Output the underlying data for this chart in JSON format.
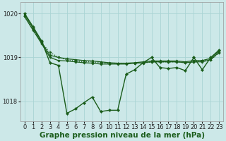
{
  "background_color": "#cce8e8",
  "plot_bg_color": "#cce8e8",
  "line_color": "#1a5c1a",
  "grid_color": "#aad4d4",
  "xlabel": "Graphe pression niveau de la mer (hPa)",
  "xlabel_fontsize": 7.5,
  "tick_fontsize": 6,
  "ylim": [
    1017.55,
    1020.25
  ],
  "xlim": [
    -0.5,
    23.5
  ],
  "yticks": [
    1018,
    1019,
    1020
  ],
  "xticks": [
    0,
    1,
    2,
    3,
    4,
    5,
    6,
    7,
    8,
    9,
    10,
    11,
    12,
    13,
    14,
    15,
    16,
    17,
    18,
    19,
    20,
    21,
    22,
    23
  ],
  "series": [
    {
      "y": [
        1019.93,
        1019.63,
        1019.33,
        1019.12,
        1019.0,
        1018.95,
        1018.92,
        1018.9,
        1018.9,
        1018.88,
        1018.87,
        1018.87,
        1018.87,
        1018.87,
        1018.87,
        1018.9,
        1018.9,
        1018.9,
        1018.9,
        1018.88,
        1018.9,
        1018.92,
        1018.95,
        1019.1
      ],
      "style": "dotted",
      "lw": 0.9,
      "marker": "D",
      "ms": 1.8
    },
    {
      "y": [
        1019.93,
        1019.62,
        1019.32,
        1019.0,
        1018.93,
        1018.92,
        1018.9,
        1018.88,
        1018.87,
        1018.85,
        1018.85,
        1018.85,
        1018.85,
        1018.87,
        1018.88,
        1018.9,
        1018.9,
        1018.9,
        1018.9,
        1018.88,
        1018.9,
        1018.9,
        1018.95,
        1019.12
      ],
      "style": "solid",
      "lw": 0.9,
      "marker": "D",
      "ms": 1.8
    },
    {
      "y": [
        1019.97,
        1019.67,
        1019.35,
        1019.05,
        1019.0,
        1018.97,
        1018.95,
        1018.93,
        1018.92,
        1018.9,
        1018.88,
        1018.87,
        1018.87,
        1018.88,
        1018.9,
        1018.92,
        1018.92,
        1018.92,
        1018.92,
        1018.9,
        1018.93,
        1018.93,
        1018.98,
        1019.15
      ],
      "style": "solid",
      "lw": 0.9,
      "marker": "D",
      "ms": 1.8
    },
    {
      "y": [
        1020.0,
        1019.7,
        1019.38,
        1018.88,
        1018.82,
        1017.73,
        1017.83,
        1017.97,
        1018.1,
        1017.77,
        1017.8,
        1017.8,
        1018.62,
        1018.72,
        1018.88,
        1019.0,
        1018.77,
        1018.75,
        1018.77,
        1018.7,
        1019.0,
        1018.72,
        1019.0,
        1019.17
      ],
      "style": "solid",
      "lw": 1.0,
      "marker": "D",
      "ms": 2.2
    }
  ]
}
